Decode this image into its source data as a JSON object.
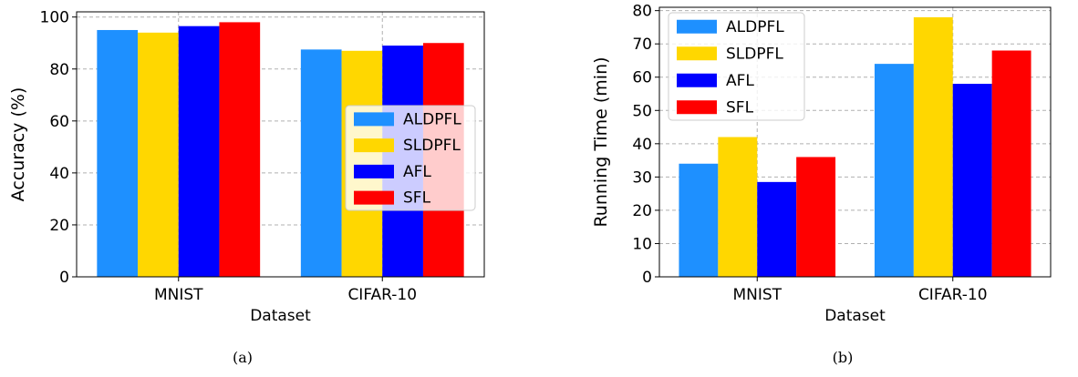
{
  "chart_data": [
    {
      "type": "bar",
      "caption": "(a)",
      "xlabel": "Dataset",
      "ylabel": "Accuracy (%)",
      "categories": [
        "MNIST",
        "CIFAR-10"
      ],
      "ylim": [
        0,
        102
      ],
      "yticks": [
        0,
        20,
        40,
        60,
        80,
        100
      ],
      "grid": true,
      "legend_position": "right",
      "series": [
        {
          "name": "ALDPFL",
          "color": "#1e90ff",
          "values": [
            95.0,
            87.5
          ]
        },
        {
          "name": "SLDPFL",
          "color": "#ffd700",
          "values": [
            94.0,
            87.0
          ]
        },
        {
          "name": "AFL",
          "color": "#0000ff",
          "values": [
            96.5,
            89.0
          ]
        },
        {
          "name": "SFL",
          "color": "#ff0000",
          "values": [
            98.0,
            90.0
          ]
        }
      ]
    },
    {
      "type": "bar",
      "caption": "(b)",
      "xlabel": "Dataset",
      "ylabel": "Running Time (min)",
      "categories": [
        "MNIST",
        "CIFAR-10"
      ],
      "ylim": [
        0,
        81
      ],
      "yticks": [
        0,
        10,
        20,
        30,
        40,
        50,
        60,
        70,
        80
      ],
      "grid": true,
      "legend_position": "top-left",
      "series": [
        {
          "name": "ALDPFL",
          "color": "#1e90ff",
          "values": [
            34,
            64
          ]
        },
        {
          "name": "SLDPFL",
          "color": "#ffd700",
          "values": [
            42,
            78
          ]
        },
        {
          "name": "AFL",
          "color": "#0000ff",
          "values": [
            28.5,
            58
          ]
        },
        {
          "name": "SFL",
          "color": "#ff0000",
          "values": [
            36,
            68
          ]
        }
      ]
    }
  ]
}
